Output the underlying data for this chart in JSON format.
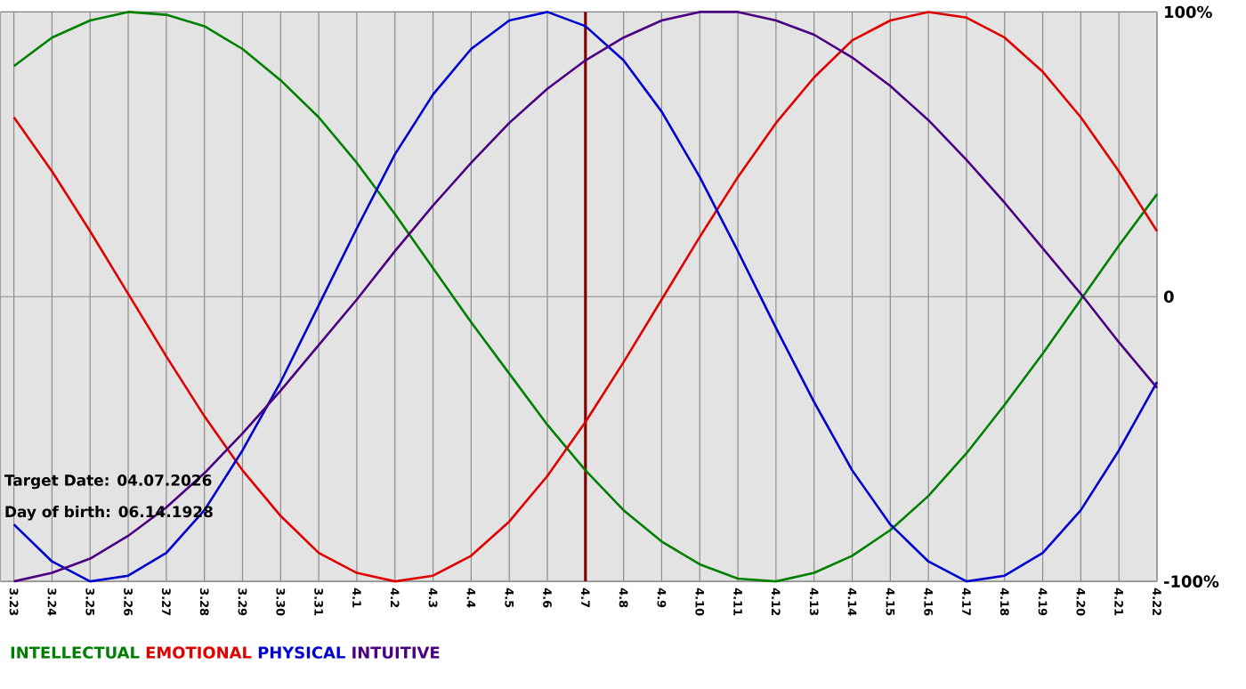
{
  "chart_data": {
    "type": "line",
    "categories": [
      "3.23",
      "3.24",
      "3.25",
      "3.26",
      "3.27",
      "3.28",
      "3.29",
      "3.30",
      "3.31",
      "4.1",
      "4.2",
      "4.3",
      "4.4",
      "4.5",
      "4.6",
      "4.7",
      "4.8",
      "4.9",
      "4.10",
      "4.11",
      "4.12",
      "4.13",
      "4.14",
      "4.15",
      "4.16",
      "4.17",
      "4.18",
      "4.19",
      "4.20",
      "4.21",
      "4.22"
    ],
    "series": [
      {
        "name": "INTELLECTUAL",
        "color": "#008000",
        "values": [
          81,
          91,
          97,
          100,
          99,
          95,
          87,
          76,
          63,
          47,
          29,
          10,
          -9,
          -27,
          -45,
          -61,
          -75,
          -86,
          -94,
          -99,
          -100,
          -97,
          -91,
          -82,
          -70,
          -55,
          -38,
          -20,
          -1,
          18,
          36
        ]
      },
      {
        "name": "EMOTIONAL",
        "color": "#e00000",
        "values": [
          63,
          44,
          23,
          1,
          -21,
          -42,
          -61,
          -77,
          -90,
          -97,
          -100,
          -98,
          -91,
          -79,
          -63,
          -44,
          -23,
          -1,
          21,
          42,
          61,
          77,
          90,
          97,
          100,
          98,
          91,
          79,
          63,
          44,
          23
        ]
      },
      {
        "name": "PHYSICAL",
        "color": "#0000d0",
        "values": [
          -80,
          -93,
          -100,
          -98,
          -90,
          -75,
          -54,
          -30,
          -3,
          24,
          50,
          71,
          87,
          97,
          100,
          95,
          83,
          65,
          42,
          16,
          -11,
          -37,
          -61,
          -80,
          -93,
          -100,
          -98,
          -90,
          -75,
          -54,
          -30
        ]
      },
      {
        "name": "INTUITIVE",
        "color": "#4b0082",
        "values": [
          -100,
          -97,
          -92,
          -84,
          -74,
          -62,
          -48,
          -33,
          -17,
          -1,
          16,
          32,
          47,
          61,
          73,
          83,
          91,
          97,
          100,
          100,
          97,
          92,
          84,
          74,
          62,
          48,
          33,
          17,
          1,
          -16,
          -32
        ]
      }
    ],
    "ylim": [
      -100,
      100
    ],
    "yticks": [
      {
        "value": -100,
        "label": "-100%"
      },
      0,
      {
        "value": 100,
        "label": "100%"
      }
    ],
    "grid": true,
    "legend": "bottom left",
    "ref_lines": [
      {
        "axis": "x",
        "value": "4.7",
        "color": "#800000"
      }
    ],
    "annotations": [
      "Target Date: 04.07.2026",
      "Day of birth: 06.14.1928"
    ]
  }
}
